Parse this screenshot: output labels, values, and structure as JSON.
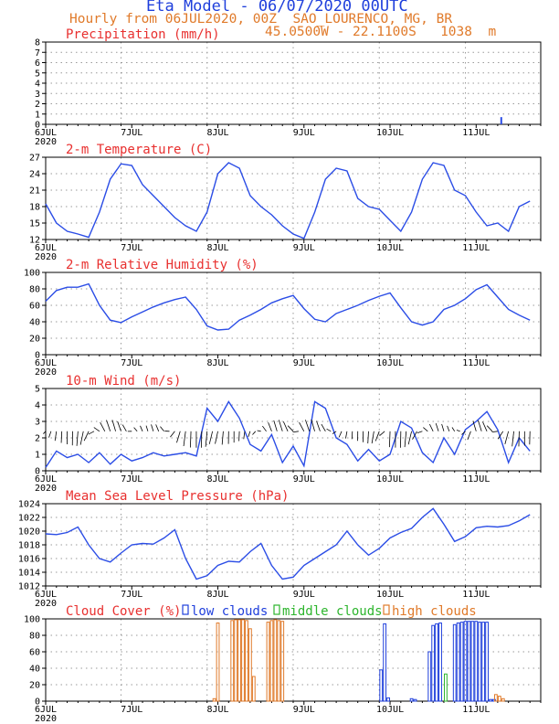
{
  "header": {
    "title": "Eta Model - 06/07/2020 00UTC",
    "subtitle_left": "Hourly from 06JUL2020, 00Z",
    "location": "SAO_LOURENCO, MG, BR",
    "coords": "45.0500W - 22.1100S",
    "elevation": "1038  m"
  },
  "colors": {
    "title": "#1f3fdc",
    "header": "#e07a2a",
    "panel_title": "#e8302f",
    "line": "#2b4de6",
    "low": "#1f3fdc",
    "mid": "#2db52d",
    "high": "#e07a2a",
    "wind_barb": "#000000"
  },
  "chart_data": [
    {
      "id": "precip",
      "type": "bar",
      "title": "Precipitation (mm/h)",
      "x": [
        127
      ],
      "values": [
        0.7
      ],
      "ylim": [
        0,
        8
      ],
      "yticks": [
        0,
        1,
        2,
        3,
        4,
        5,
        6,
        7,
        8
      ],
      "xlabels": [
        "6JUL",
        "7JUL",
        "8JUL",
        "9JUL",
        "10JUL",
        "11JUL"
      ],
      "year_label": "2020",
      "grid": true
    },
    {
      "id": "temp",
      "type": "line",
      "title": "2-m Temperature (C)",
      "x": [
        0,
        3,
        6,
        9,
        12,
        15,
        18,
        21,
        24,
        27,
        30,
        33,
        36,
        39,
        42,
        45,
        48,
        51,
        54,
        57,
        60,
        63,
        66,
        69,
        72,
        75,
        78,
        81,
        84,
        87,
        90,
        93,
        96,
        99,
        102,
        105,
        108,
        111,
        114,
        117,
        120,
        123,
        126,
        129,
        132,
        135
      ],
      "values": [
        18.5,
        15,
        13.5,
        13,
        12.4,
        17,
        23,
        25.8,
        25.5,
        22,
        20,
        18,
        16,
        14.5,
        13.5,
        17,
        24,
        26,
        25,
        20,
        18,
        16.5,
        14.5,
        13,
        12.2,
        17,
        23,
        25,
        24.5,
        19.5,
        18,
        17.5,
        15.5,
        13.5,
        17,
        23,
        26,
        25.5,
        21,
        20,
        17,
        14.5,
        15,
        13.5,
        18,
        19
      ],
      "ylim": [
        12,
        27
      ],
      "yticks": [
        12,
        15,
        18,
        21,
        24,
        27
      ],
      "xlabels": [
        "6JUL",
        "7JUL",
        "8JUL",
        "9JUL",
        "10JUL",
        "11JUL"
      ],
      "year_label": "2020",
      "grid": true
    },
    {
      "id": "rh",
      "type": "line",
      "title": "2-m Relative Humidity (%)",
      "x": [
        0,
        3,
        6,
        9,
        12,
        15,
        18,
        21,
        24,
        27,
        30,
        33,
        36,
        39,
        42,
        45,
        48,
        51,
        54,
        57,
        60,
        63,
        66,
        69,
        72,
        75,
        78,
        81,
        84,
        87,
        90,
        93,
        96,
        99,
        102,
        105,
        108,
        111,
        114,
        117,
        120,
        123,
        126,
        129,
        132,
        135
      ],
      "values": [
        65,
        78,
        82,
        82,
        86,
        60,
        42,
        39,
        46,
        52,
        58,
        63,
        67,
        70,
        55,
        35,
        30,
        31,
        42,
        48,
        55,
        63,
        68,
        72,
        56,
        43,
        40,
        50,
        55,
        60,
        66,
        71,
        75,
        57,
        40,
        36,
        40,
        55,
        60,
        68,
        79,
        85,
        70,
        55,
        48,
        42
      ],
      "ylim": [
        0,
        100
      ],
      "yticks": [
        0,
        20,
        40,
        60,
        80,
        100
      ],
      "xlabels": [
        "6JUL",
        "7JUL",
        "8JUL",
        "9JUL",
        "10JUL",
        "11JUL"
      ],
      "year_label": "2020",
      "grid": true
    },
    {
      "id": "wind",
      "type": "line",
      "title": "10-m Wind (m/s)",
      "x": [
        0,
        3,
        6,
        9,
        12,
        15,
        18,
        21,
        24,
        27,
        30,
        33,
        36,
        39,
        42,
        45,
        48,
        51,
        54,
        57,
        60,
        63,
        66,
        69,
        72,
        75,
        78,
        81,
        84,
        87,
        90,
        93,
        96,
        99,
        102,
        105,
        108,
        111,
        114,
        117,
        120,
        123,
        126,
        129,
        132,
        135
      ],
      "values": [
        0.2,
        1.2,
        0.8,
        1.0,
        0.5,
        1.1,
        0.4,
        1.0,
        0.6,
        0.8,
        1.1,
        0.9,
        1.0,
        1.1,
        0.9,
        3.8,
        3.0,
        4.2,
        3.2,
        1.6,
        1.2,
        2.2,
        0.5,
        1.5,
        0.3,
        4.2,
        3.8,
        2.0,
        1.6,
        0.6,
        1.3,
        0.6,
        1.0,
        3.0,
        2.6,
        1.1,
        0.5,
        2.0,
        1.0,
        2.5,
        3.0,
        3.6,
        2.5,
        0.5,
        2.0,
        1.2
      ],
      "ylim": [
        0,
        5
      ],
      "yticks": [
        0,
        1,
        2,
        3,
        4,
        5
      ],
      "xlabels": [
        "6JUL",
        "7JUL",
        "8JUL",
        "9JUL",
        "10JUL",
        "11JUL"
      ],
      "year_label": "2020",
      "grid": true
    },
    {
      "id": "mslp",
      "type": "line",
      "title": "Mean Sea Level Pressure (hPa)",
      "x": [
        0,
        3,
        6,
        9,
        12,
        15,
        18,
        21,
        24,
        27,
        30,
        33,
        36,
        39,
        42,
        45,
        48,
        51,
        54,
        57,
        60,
        63,
        66,
        69,
        72,
        75,
        78,
        81,
        84,
        87,
        90,
        93,
        96,
        99,
        102,
        105,
        108,
        111,
        114,
        117,
        120,
        123,
        126,
        129,
        132,
        135
      ],
      "values": [
        1019.6,
        1019.5,
        1019.8,
        1020.6,
        1018,
        1016,
        1015.5,
        1016.8,
        1018,
        1018.2,
        1018.1,
        1019,
        1020.2,
        1016,
        1013,
        1013.5,
        1015,
        1015.6,
        1015.5,
        1017,
        1018.2,
        1015,
        1013,
        1013.3,
        1015,
        1016,
        1017,
        1018,
        1020,
        1018,
        1016.5,
        1017.5,
        1019,
        1019.8,
        1020.4,
        1022,
        1023.3,
        1021,
        1018.5,
        1019.2,
        1020.5,
        1020.7,
        1020.6,
        1020.8,
        1021.5,
        1022.4
      ],
      "ylim": [
        1012,
        1024
      ],
      "yticks": [
        1012,
        1014,
        1016,
        1018,
        1020,
        1022,
        1024
      ],
      "xlabels": [
        "6JUL",
        "7JUL",
        "8JUL",
        "9JUL",
        "10JUL",
        "11JUL"
      ],
      "year_label": "2020",
      "grid": true
    },
    {
      "id": "cloud",
      "type": "bar",
      "title": "Cloud Cover (%)",
      "legend": [
        "low clouds",
        "middle clouds",
        "high clouds"
      ],
      "series": [
        {
          "name": "low clouds",
          "x": [
            93.5,
            94.5,
            95.5,
            102,
            103,
            107,
            108,
            109,
            110,
            114,
            115,
            116,
            117,
            118,
            119,
            120,
            121,
            122,
            123,
            124,
            125
          ],
          "values": [
            38,
            94,
            4,
            3,
            2,
            60,
            92,
            94,
            95,
            93,
            95,
            96,
            97,
            97,
            97,
            97,
            96,
            96,
            96,
            2,
            2
          ]
        },
        {
          "name": "middle clouds",
          "x": [
            111.5
          ],
          "values": [
            33
          ]
        },
        {
          "name": "high clouds",
          "x": [
            47,
            48,
            52,
            53,
            54,
            55,
            56,
            57,
            58,
            62,
            63,
            64,
            65,
            66,
            125.5,
            126.5,
            127.5
          ],
          "values": [
            3,
            95,
            98,
            99,
            99,
            99,
            98,
            88,
            30,
            96,
            98,
            99,
            98,
            97,
            8,
            6,
            3
          ]
        }
      ],
      "ylim": [
        0,
        100
      ],
      "yticks": [
        0,
        20,
        40,
        60,
        80,
        100
      ],
      "xlabels": [
        "6JUL",
        "7JUL",
        "8JUL",
        "9JUL",
        "10JUL",
        "11JUL"
      ],
      "year_label": "2020",
      "grid": true
    }
  ]
}
